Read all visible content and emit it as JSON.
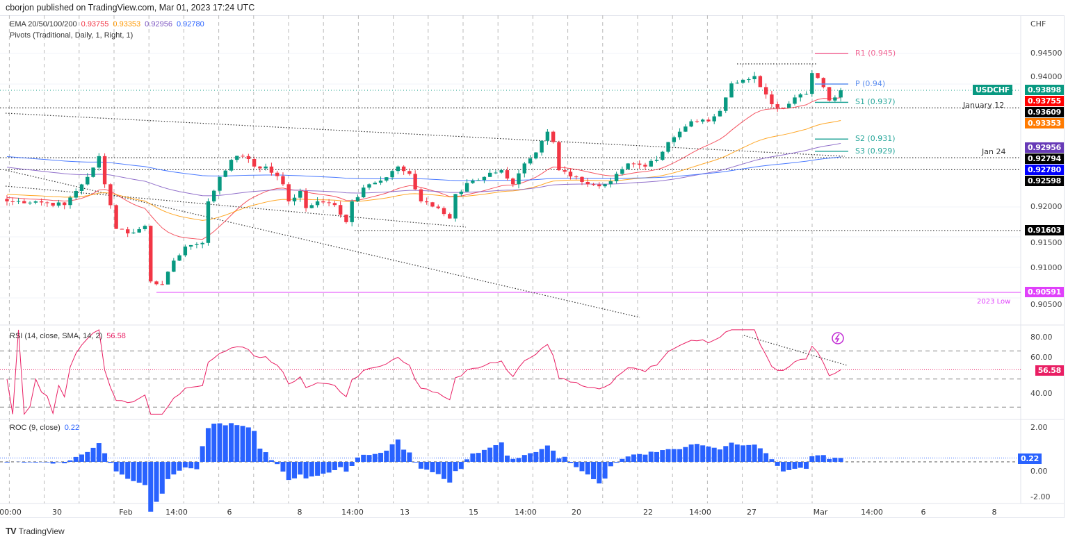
{
  "header": {
    "published": "cborjon published on TradingView.com, Mar 01, 2023 17:24 UTC"
  },
  "footer": {
    "brand": "TradingView"
  },
  "colors": {
    "up": "#089981",
    "down": "#f23645",
    "ema20": "#f23645",
    "ema50": "#ff9800",
    "ema100": "#7e57c2",
    "ema200": "#2962ff",
    "rsi": "#e91e63",
    "roc": "#2962ff",
    "low": "#e040fb"
  },
  "chart_data": {
    "type": "candlestick",
    "symbol": "USDCHF",
    "currency": "CHF",
    "legend": {
      "ema_label": "EMA 20/50/100/200",
      "ema_values": [
        "0.93755",
        "0.93353",
        "0.92956",
        "0.92780"
      ],
      "pivots_label": "Pivots (Traditional, Daily, 1, Right, 1)",
      "rsi_label": "RSI (14, close, SMA, 14, 2)",
      "rsi_value": "56.58",
      "roc_label": "ROC (9, close)",
      "roc_value": "0.22"
    },
    "price_axis": {
      "ticks": [
        "0.94500",
        "0.94000",
        "0.92000",
        "0.91500",
        "0.91000",
        "0.90500"
      ],
      "ylim": [
        0.9035,
        0.9485
      ]
    },
    "rsi_axis": {
      "ticks": [
        "80.00",
        "60.00",
        "40.00"
      ],
      "bands": [
        70,
        50,
        30
      ],
      "ylim": [
        20,
        90
      ]
    },
    "roc_axis": {
      "ticks": [
        "2.00",
        "0.00",
        "-2.00"
      ],
      "ylim": [
        -2.5,
        2.5
      ]
    },
    "time_axis": [
      "00:00",
      "30",
      "Feb",
      "14:00",
      "6",
      "8",
      "14:00",
      "13",
      "15",
      "14:00",
      "20",
      "22",
      "14:00",
      "27",
      "Mar",
      "14:00",
      "6",
      "8"
    ],
    "close_keypoints": [
      [
        0,
        0.9208
      ],
      [
        5,
        0.9208
      ],
      [
        10,
        0.9202
      ],
      [
        12,
        0.9225
      ],
      [
        14,
        0.9248
      ],
      [
        16,
        0.9282
      ],
      [
        17,
        0.9236
      ],
      [
        19,
        0.9163
      ],
      [
        22,
        0.9157
      ],
      [
        24,
        0.9168
      ],
      [
        25,
        0.9077
      ],
      [
        27,
        0.9072
      ],
      [
        29,
        0.9111
      ],
      [
        31,
        0.9134
      ],
      [
        34,
        0.914
      ],
      [
        35,
        0.9208
      ],
      [
        37,
        0.9248
      ],
      [
        39,
        0.9276
      ],
      [
        41,
        0.9282
      ],
      [
        43,
        0.9265
      ],
      [
        45,
        0.9265
      ],
      [
        48,
        0.9236
      ],
      [
        49,
        0.9208
      ],
      [
        51,
        0.9225
      ],
      [
        52,
        0.9197
      ],
      [
        54,
        0.9208
      ],
      [
        57,
        0.9202
      ],
      [
        59,
        0.9174
      ],
      [
        60,
        0.9208
      ],
      [
        63,
        0.9236
      ],
      [
        65,
        0.9242
      ],
      [
        68,
        0.9265
      ],
      [
        70,
        0.9253
      ],
      [
        72,
        0.9208
      ],
      [
        75,
        0.9197
      ],
      [
        77,
        0.918
      ],
      [
        78,
        0.922
      ],
      [
        81,
        0.9242
      ],
      [
        83,
        0.9248
      ],
      [
        86,
        0.9259
      ],
      [
        88,
        0.9236
      ],
      [
        90,
        0.927
      ],
      [
        92,
        0.9288
      ],
      [
        94,
        0.9322
      ],
      [
        95,
        0.9305
      ],
      [
        96,
        0.9259
      ],
      [
        99,
        0.9248
      ],
      [
        101,
        0.9236
      ],
      [
        104,
        0.9236
      ],
      [
        106,
        0.9253
      ],
      [
        108,
        0.927
      ],
      [
        111,
        0.9265
      ],
      [
        113,
        0.9276
      ],
      [
        115,
        0.9305
      ],
      [
        117,
        0.9322
      ],
      [
        119,
        0.9339
      ],
      [
        122,
        0.9339
      ],
      [
        124,
        0.9356
      ],
      [
        126,
        0.9401
      ],
      [
        128,
        0.9407
      ],
      [
        130,
        0.9413
      ],
      [
        131,
        0.9395
      ],
      [
        133,
        0.9367
      ],
      [
        135,
        0.9361
      ],
      [
        137,
        0.9378
      ],
      [
        139,
        0.9384
      ],
      [
        140,
        0.9418
      ],
      [
        141,
        0.941
      ],
      [
        142,
        0.9395
      ],
      [
        143,
        0.9373
      ],
      [
        144,
        0.9378
      ],
      [
        145,
        0.93898
      ]
    ],
    "price_labels": [
      {
        "text": "0.93898",
        "price": 0.93898,
        "color": "#089981",
        "name": "last-price"
      },
      {
        "text": "0.93755",
        "price": 0.93755,
        "color": "#ff0000",
        "name": "ema20"
      },
      {
        "text": "0.93609",
        "price": 0.93609,
        "color": "#000000",
        "name": "level"
      },
      {
        "text": "0.93353",
        "price": 0.93353,
        "color": "#ff7a00",
        "name": "ema50"
      },
      {
        "text": "0.92956",
        "price": 0.92956,
        "color": "#673ab7",
        "name": "ema100"
      },
      {
        "text": "0.92794",
        "price": 0.92794,
        "color": "#000000",
        "name": "level"
      },
      {
        "text": "0.92780",
        "price": 0.9278,
        "color": "#0000ff",
        "name": "ema200"
      },
      {
        "text": "0.92598",
        "price": 0.92598,
        "color": "#000000",
        "name": "level"
      },
      {
        "text": "0.91603",
        "price": 0.91603,
        "color": "#000000",
        "name": "level"
      },
      {
        "text": "0.90591",
        "price": 0.90591,
        "color": "#e040fb",
        "name": "2023-low"
      }
    ],
    "symbol_tag": "USDCHF",
    "annotations": {
      "jan12": "January 12",
      "jan24": "Jan 24",
      "low": "2023 Low"
    },
    "pivots": [
      {
        "label": "R1 (0.945)",
        "price": 0.945,
        "color": "#f06292"
      },
      {
        "label": "P (0.94)",
        "price": 0.94,
        "color": "#5b8def"
      },
      {
        "label": "S1 (0.937)",
        "price": 0.937,
        "color": "#26a69a"
      },
      {
        "label": "S2 (0.931)",
        "price": 0.931,
        "color": "#26a69a"
      },
      {
        "label": "S3 (0.929)",
        "price": 0.929,
        "color": "#26a69a"
      }
    ]
  }
}
